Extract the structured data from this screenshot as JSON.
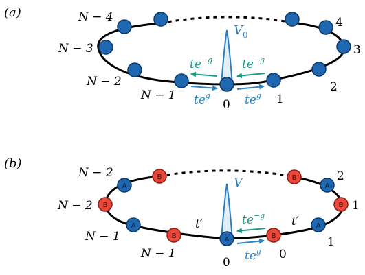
{
  "colors": {
    "site_a": "#1f67b0",
    "site_a_edge": "#0e3a66",
    "site_b": "#e8473a",
    "site_b_edge": "#8a1f15",
    "hop_left": "#1c9a86",
    "hop_right": "#2a86c8",
    "potential": "#2a7fc1",
    "ring": "#000000"
  },
  "panel_a": {
    "label": "(a)",
    "potential_label": "V",
    "potential_sub": "0",
    "sites": [
      {
        "text": "0"
      },
      {
        "text": "1"
      },
      {
        "text": "2"
      },
      {
        "text": "3"
      },
      {
        "text": "4"
      },
      {
        "text": "N − 1"
      },
      {
        "text": "N − 2"
      },
      {
        "text": "N − 3"
      },
      {
        "text": "N − 4"
      }
    ],
    "hop_left_left": {
      "base": "te",
      "exp": "−g"
    },
    "hop_left_right": {
      "base": "te",
      "exp": "−g"
    },
    "hop_right_left": {
      "base": "te",
      "exp": "g"
    },
    "hop_right_right": {
      "base": "te",
      "exp": "g"
    }
  },
  "panel_b": {
    "label": "(b)",
    "potential_label": "V",
    "site_letter_a": "A",
    "site_letter_b": "B",
    "t_prime": "t′",
    "cells": [
      {
        "text": "0"
      },
      {
        "text": "0"
      },
      {
        "text": "1"
      },
      {
        "text": "1"
      },
      {
        "text": "2"
      },
      {
        "text": "N − 1"
      },
      {
        "text": "N − 1"
      },
      {
        "text": "N − 2"
      },
      {
        "text": "N − 2"
      }
    ],
    "hop_left": {
      "base": "te",
      "exp": "−g"
    },
    "hop_right": {
      "base": "te",
      "exp": "g"
    }
  }
}
